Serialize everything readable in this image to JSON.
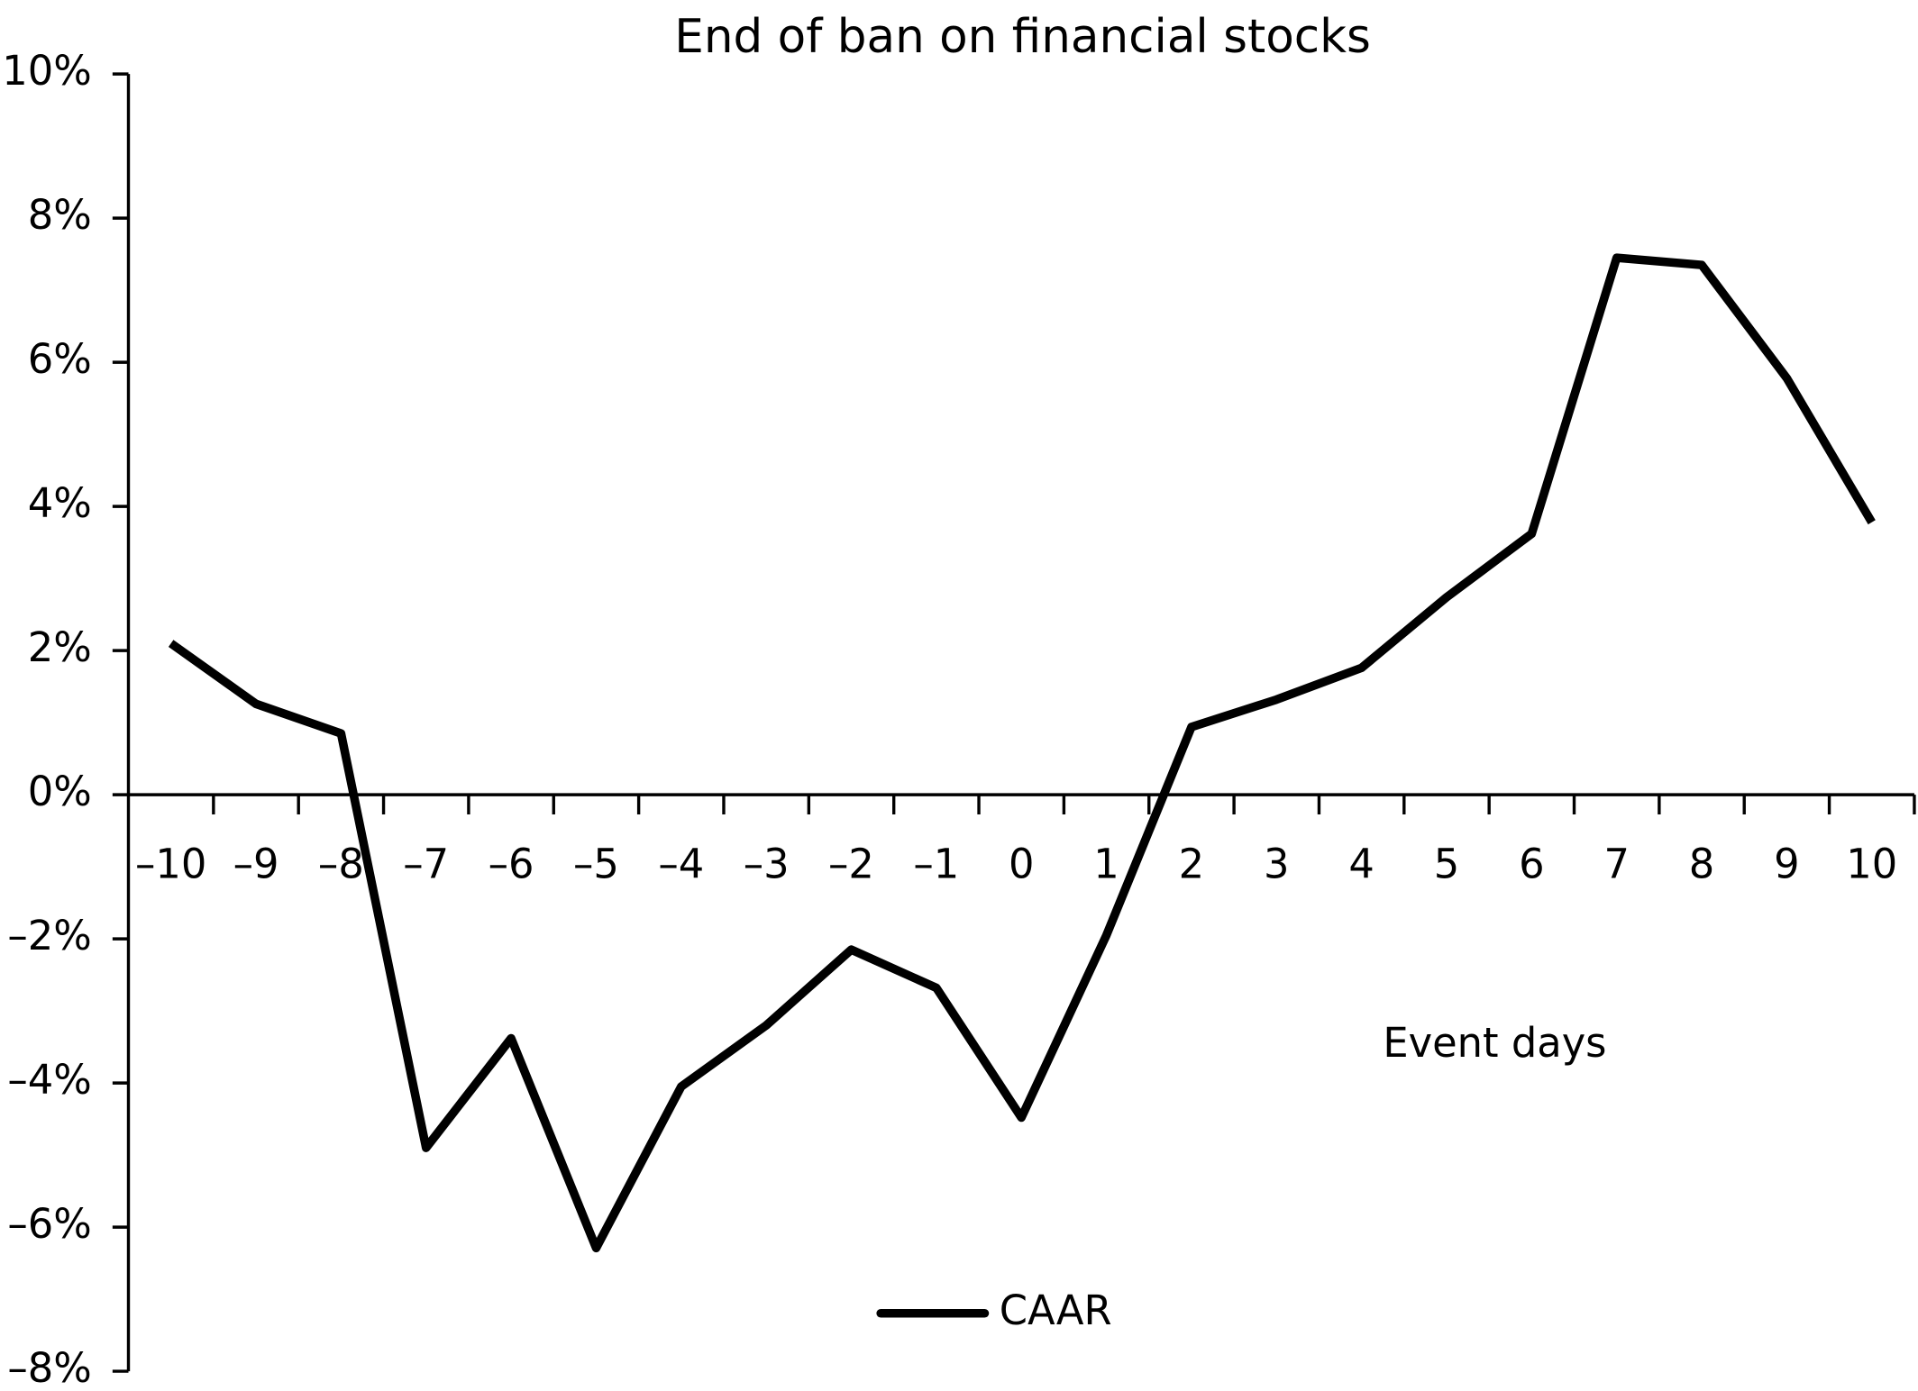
{
  "chart_data": {
    "type": "line",
    "title": "End of ban on financial stocks",
    "x_label": "Event days",
    "categories": [
      "–10",
      "–9",
      "–8",
      "–7",
      "–6",
      "–5",
      "–4",
      "–3",
      "–2",
      "–1",
      "0",
      "1",
      "2",
      "3",
      "4",
      "5",
      "6",
      "7",
      "8",
      "9",
      "10"
    ],
    "series": [
      {
        "name": "CAAR",
        "color": "#000000",
        "values": [
          2.1,
          1.26,
          0.85,
          -4.9,
          -3.38,
          -6.29,
          -4.05,
          -3.2,
          -2.15,
          -2.68,
          -4.48,
          -1.95,
          0.94,
          1.32,
          1.76,
          2.74,
          3.62,
          7.45,
          7.35,
          5.78,
          3.78
        ]
      }
    ],
    "ylim": [
      -8,
      10
    ],
    "yticks": [
      {
        "value": -8,
        "label": "–8%"
      },
      {
        "value": -6,
        "label": "–6%"
      },
      {
        "value": -4,
        "label": "–4%"
      },
      {
        "value": -2,
        "label": "–2%"
      },
      {
        "value": 0,
        "label": "0%"
      },
      {
        "value": 2,
        "label": "2%"
      },
      {
        "value": 4,
        "label": "4%"
      },
      {
        "value": 6,
        "label": "6%"
      },
      {
        "value": 8,
        "label": "8%"
      },
      {
        "value": 10,
        "label": "10%"
      }
    ],
    "grid": false,
    "legend": "bottom"
  }
}
